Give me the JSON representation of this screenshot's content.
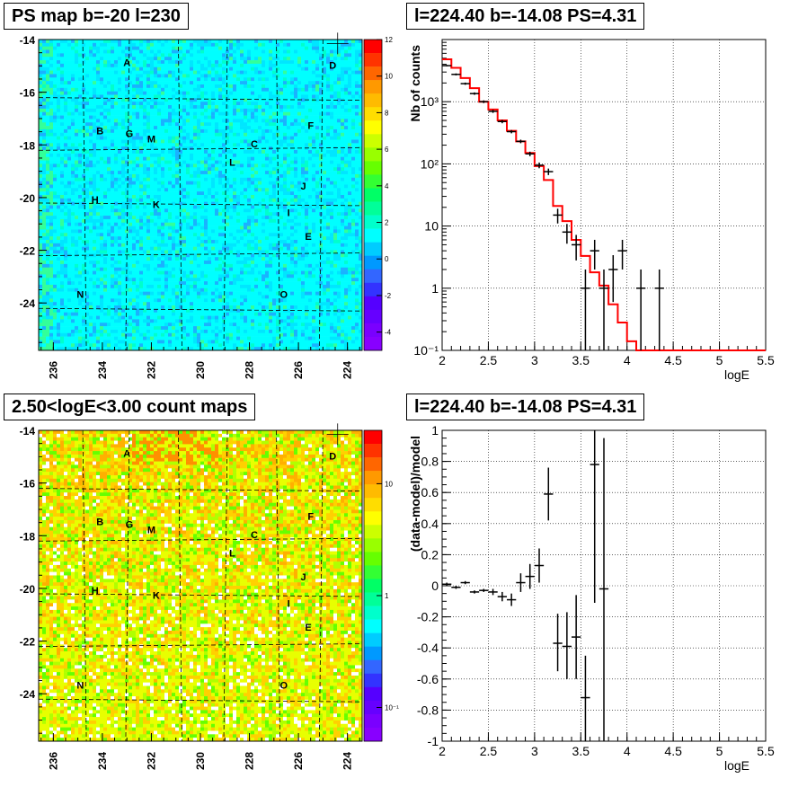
{
  "panels": {
    "tl_title": "PS map b=-20 l=230",
    "bl_title": "2.50<logE<3.00 count maps",
    "tr_title": "l=224.40 b=-14.08 PS=4.31",
    "br_title": "l=224.40 b=-14.08 PS=4.31"
  },
  "chart_data": [
    {
      "type": "heatmap",
      "title": "PS map b=-20 l=230",
      "x_ticks": [
        "236",
        "234",
        "232",
        "230",
        "228",
        "226",
        "224"
      ],
      "y_ticks": [
        "-14",
        "-16",
        "-18",
        "-20",
        "-22",
        "-24"
      ],
      "xlim": [
        236.6,
        223.4
      ],
      "ylim": [
        -25.8,
        -14
      ],
      "colorbar_ticks": [
        "12",
        "10",
        "8",
        "6",
        "4",
        "2",
        "0",
        "-2",
        "-4"
      ],
      "colorbar_range": [
        -5,
        12
      ],
      "colorbar_scale": "linear",
      "sources": [
        {
          "label": "A",
          "l": 233.0,
          "b": -15.0
        },
        {
          "label": "B",
          "l": 234.1,
          "b": -17.6
        },
        {
          "label": "G",
          "l": 232.9,
          "b": -17.7
        },
        {
          "label": "M",
          "l": 232.0,
          "b": -17.9
        },
        {
          "label": "C",
          "l": 227.8,
          "b": -18.1
        },
        {
          "label": "L",
          "l": 228.7,
          "b": -18.8
        },
        {
          "label": "D",
          "l": 224.6,
          "b": -15.1
        },
        {
          "label": "F",
          "l": 225.5,
          "b": -17.4
        },
        {
          "label": "J",
          "l": 225.8,
          "b": -19.7
        },
        {
          "label": "H",
          "l": 234.3,
          "b": -20.2
        },
        {
          "label": "K",
          "l": 231.8,
          "b": -20.4
        },
        {
          "label": "I",
          "l": 226.4,
          "b": -20.7
        },
        {
          "label": "E",
          "l": 225.6,
          "b": -21.6
        },
        {
          "label": "N",
          "l": 234.9,
          "b": -23.8
        },
        {
          "label": "O",
          "l": 226.6,
          "b": -23.8
        }
      ],
      "marker": {
        "l": 224.4,
        "b": -14.08
      },
      "cell_colors": [
        "#00ffff",
        "#00e6ff",
        "#1ab2ff",
        "#33ff99",
        "#66ff33",
        "#00ffcc"
      ]
    },
    {
      "type": "line",
      "title": "l=224.40 b=-14.08 PS=4.31",
      "xlabel": "logE",
      "ylabel": "Nb of counts",
      "xlim": [
        2,
        5.5
      ],
      "ylim": [
        0.1,
        10000
      ],
      "yscale": "log",
      "x_ticks": [
        "2",
        "2.5",
        "3",
        "3.5",
        "4",
        "4.5",
        "5",
        "5.5"
      ],
      "y_ticks": [
        "10⁻¹",
        "1",
        "10",
        "10²",
        "10³"
      ],
      "grid": true,
      "model_color": "#ff0000",
      "model_step": {
        "edges": [
          2.0,
          2.1,
          2.2,
          2.3,
          2.4,
          2.5,
          2.6,
          2.7,
          2.8,
          2.9,
          3.0,
          3.1,
          3.2,
          3.3,
          3.4,
          3.5,
          3.6,
          3.7,
          3.8,
          3.9,
          4.0,
          4.1,
          5.5
        ],
        "values": [
          4800,
          3500,
          2400,
          1650,
          1000,
          750,
          500,
          340,
          230,
          150,
          92,
          55,
          21,
          12,
          6,
          3.3,
          1.8,
          1.1,
          0.55,
          0.28,
          0.14,
          0.1
        ]
      },
      "data_points": [
        {
          "x": 2.05,
          "y": 3800,
          "ylo": 3700,
          "yhi": 3900
        },
        {
          "x": 2.15,
          "y": 2750,
          "ylo": 2650,
          "yhi": 2850
        },
        {
          "x": 2.25,
          "y": 1950,
          "ylo": 1870,
          "yhi": 2030
        },
        {
          "x": 2.35,
          "y": 1350,
          "ylo": 1290,
          "yhi": 1410
        },
        {
          "x": 2.45,
          "y": 1000,
          "ylo": 950,
          "yhi": 1050
        },
        {
          "x": 2.55,
          "y": 700,
          "ylo": 660,
          "yhi": 740
        },
        {
          "x": 2.65,
          "y": 480,
          "ylo": 450,
          "yhi": 510
        },
        {
          "x": 2.75,
          "y": 330,
          "ylo": 310,
          "yhi": 350
        },
        {
          "x": 2.85,
          "y": 230,
          "ylo": 215,
          "yhi": 245
        },
        {
          "x": 2.95,
          "y": 145,
          "ylo": 133,
          "yhi": 157
        },
        {
          "x": 3.05,
          "y": 95,
          "ylo": 85,
          "yhi": 105
        },
        {
          "x": 3.15,
          "y": 75,
          "ylo": 66,
          "yhi": 84
        },
        {
          "x": 3.25,
          "y": 15,
          "ylo": 11,
          "yhi": 19
        },
        {
          "x": 3.35,
          "y": 8,
          "ylo": 5.2,
          "yhi": 10.8
        },
        {
          "x": 3.45,
          "y": 5,
          "ylo": 2.8,
          "yhi": 7.2
        },
        {
          "x": 3.55,
          "y": 1,
          "ylo": 0.1,
          "yhi": 2
        },
        {
          "x": 3.65,
          "y": 4,
          "ylo": 2,
          "yhi": 6
        },
        {
          "x": 3.75,
          "y": 1,
          "ylo": 0.1,
          "yhi": 2
        },
        {
          "x": 3.85,
          "y": 2,
          "ylo": 0.6,
          "yhi": 3.4
        },
        {
          "x": 3.95,
          "y": 4,
          "ylo": 2,
          "yhi": 6
        },
        {
          "x": 4.15,
          "y": 1,
          "ylo": 0.1,
          "yhi": 2
        },
        {
          "x": 4.35,
          "y": 1,
          "ylo": 0.1,
          "yhi": 2
        }
      ]
    },
    {
      "type": "heatmap",
      "title": "2.50<logE<3.00 count maps",
      "x_ticks": [
        "236",
        "234",
        "232",
        "230",
        "228",
        "226",
        "224"
      ],
      "y_ticks": [
        "-14",
        "-16",
        "-18",
        "-20",
        "-22",
        "-24"
      ],
      "xlim": [
        236.6,
        223.4
      ],
      "ylim": [
        -25.8,
        -14
      ],
      "colorbar_ticks": [
        "10",
        "1",
        "10⁻¹"
      ],
      "colorbar_scale": "log",
      "colorbar_range": [
        0.05,
        30
      ],
      "sources": [
        {
          "label": "A",
          "l": 233.0,
          "b": -15.0
        },
        {
          "label": "B",
          "l": 234.1,
          "b": -17.6
        },
        {
          "label": "G",
          "l": 232.9,
          "b": -17.7
        },
        {
          "label": "M",
          "l": 232.0,
          "b": -17.9
        },
        {
          "label": "C",
          "l": 227.8,
          "b": -18.1
        },
        {
          "label": "L",
          "l": 228.7,
          "b": -18.8
        },
        {
          "label": "D",
          "l": 224.6,
          "b": -15.1
        },
        {
          "label": "F",
          "l": 225.5,
          "b": -17.4
        },
        {
          "label": "J",
          "l": 225.8,
          "b": -19.7
        },
        {
          "label": "H",
          "l": 234.3,
          "b": -20.2
        },
        {
          "label": "K",
          "l": 231.8,
          "b": -20.4
        },
        {
          "label": "I",
          "l": 226.4,
          "b": -20.7
        },
        {
          "label": "E",
          "l": 225.6,
          "b": -21.6
        },
        {
          "label": "N",
          "l": 234.9,
          "b": -23.8
        },
        {
          "label": "O",
          "l": 226.6,
          "b": -23.8
        }
      ],
      "marker": {
        "l": 224.4,
        "b": -14.08
      },
      "cell_colors": [
        "#ffb000",
        "#ffd000",
        "#e8ff00",
        "#b0ff00",
        "#66ff00",
        "#33ff66",
        "#ffffff"
      ]
    },
    {
      "type": "scatter",
      "title": "l=224.40 b=-14.08 PS=4.31",
      "xlabel": "logE",
      "ylabel": "(data-model)/model",
      "xlim": [
        2,
        5.5
      ],
      "ylim": [
        -1,
        1
      ],
      "x_ticks": [
        "2",
        "2.5",
        "3",
        "3.5",
        "4",
        "4.5",
        "5",
        "5.5"
      ],
      "y_ticks": [
        "1",
        "0.8",
        "0.6",
        "0.4",
        "0.2",
        "0",
        "-0.2",
        "-0.4",
        "-0.6",
        "-0.8",
        "-1"
      ],
      "grid": true,
      "data_points": [
        {
          "x": 2.05,
          "y": 0.01,
          "ylo": 0.0,
          "yhi": 0.02
        },
        {
          "x": 2.15,
          "y": -0.01,
          "ylo": -0.02,
          "yhi": 0.0
        },
        {
          "x": 2.25,
          "y": 0.02,
          "ylo": 0.01,
          "yhi": 0.03
        },
        {
          "x": 2.35,
          "y": -0.04,
          "ylo": -0.05,
          "yhi": -0.03
        },
        {
          "x": 2.45,
          "y": -0.03,
          "ylo": -0.04,
          "yhi": -0.02
        },
        {
          "x": 2.55,
          "y": -0.04,
          "ylo": -0.06,
          "yhi": -0.02
        },
        {
          "x": 2.65,
          "y": -0.07,
          "ylo": -0.1,
          "yhi": -0.04
        },
        {
          "x": 2.75,
          "y": -0.09,
          "ylo": -0.13,
          "yhi": -0.05
        },
        {
          "x": 2.85,
          "y": 0.02,
          "ylo": -0.04,
          "yhi": 0.08
        },
        {
          "x": 2.95,
          "y": 0.06,
          "ylo": -0.02,
          "yhi": 0.14
        },
        {
          "x": 3.05,
          "y": 0.13,
          "ylo": 0.02,
          "yhi": 0.24
        },
        {
          "x": 3.15,
          "y": 0.59,
          "ylo": 0.42,
          "yhi": 0.76
        },
        {
          "x": 3.25,
          "y": -0.37,
          "ylo": -0.55,
          "yhi": -0.18
        },
        {
          "x": 3.35,
          "y": -0.39,
          "ylo": -0.6,
          "yhi": -0.17
        },
        {
          "x": 3.45,
          "y": -0.33,
          "ylo": -0.6,
          "yhi": -0.06
        },
        {
          "x": 3.55,
          "y": -0.72,
          "ylo": -1.0,
          "yhi": -0.45
        },
        {
          "x": 3.65,
          "y": 0.78,
          "ylo": -0.11,
          "yhi": 1.0
        },
        {
          "x": 3.75,
          "y": -0.02,
          "ylo": -1.0,
          "yhi": 0.95
        }
      ]
    }
  ]
}
